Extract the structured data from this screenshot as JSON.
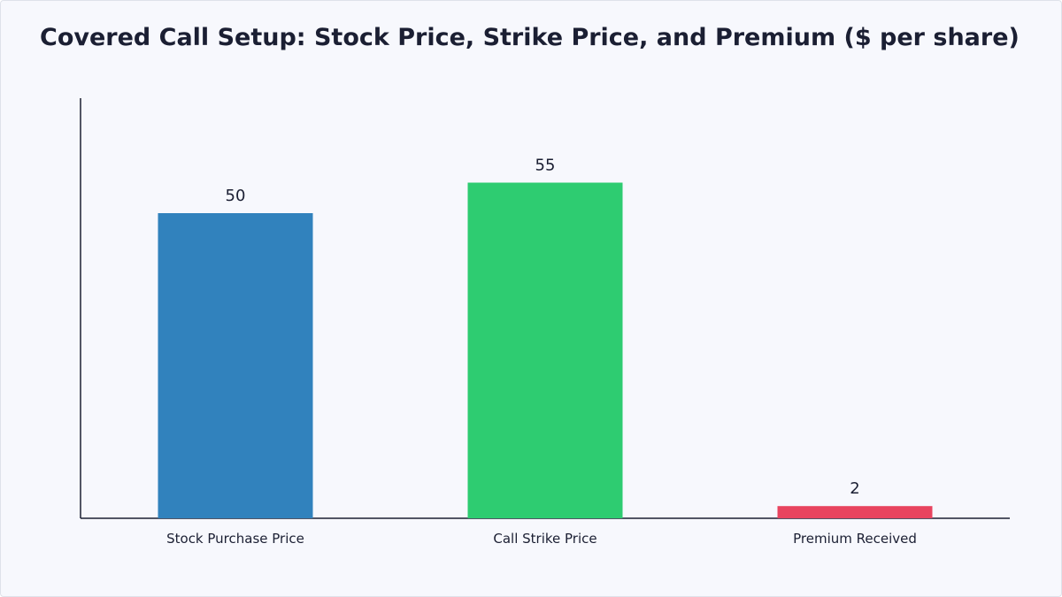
{
  "chart_data": {
    "type": "bar",
    "title": "Covered Call Setup: Stock Price, Strike Price, and Premium ($ per share)",
    "xlabel": "",
    "ylabel": "",
    "categories": [
      "Stock Purchase Price",
      "Call Strike Price",
      "Premium Received"
    ],
    "values": [
      50,
      55,
      2
    ],
    "data_labels": [
      "50",
      "55",
      "2"
    ],
    "colors": [
      "#3182bd",
      "#2ecc71",
      "#e8445f"
    ],
    "ylim": [
      0,
      62
    ],
    "grid": false,
    "legend": "none"
  }
}
